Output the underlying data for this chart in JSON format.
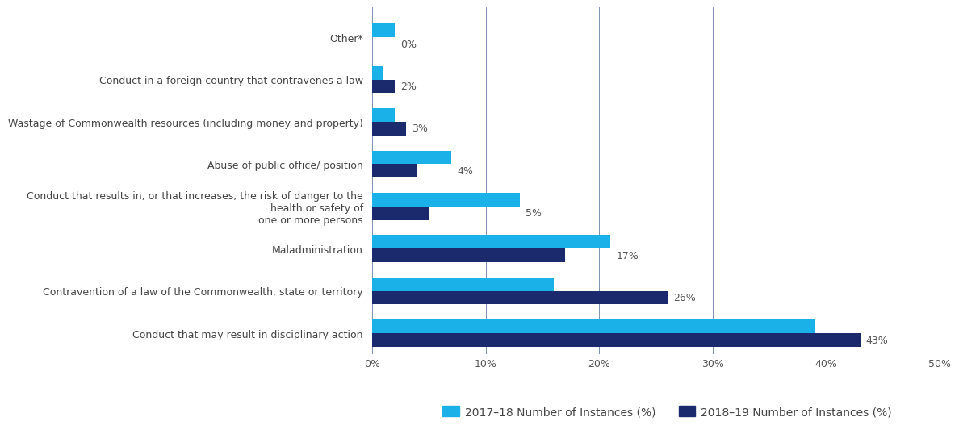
{
  "categories": [
    "Other*",
    "Conduct in a foreign country that contravenes a law",
    "Wastage of Commonwealth resources (including money and property)",
    "Abuse of public office/ position",
    "Conduct that results in, or that increases, the risk of danger to the health or safety of\none or more persons",
    "Maladministration",
    "Contravention of a law of the Commonwealth, state or territory",
    "Conduct that may result in disciplinary action"
  ],
  "values_2017_18": [
    2,
    1,
    2,
    7,
    13,
    21,
    16,
    39
  ],
  "values_2018_19": [
    0,
    2,
    3,
    4,
    5,
    17,
    26,
    43
  ],
  "labels_2018_19": [
    "0%",
    "2%",
    "3%",
    "4%",
    "5%",
    "17%",
    "26%",
    "43%"
  ],
  "color_2017_18": "#1ab0e8",
  "color_2018_19": "#1a2a6c",
  "legend_2017_18": "2017–18 Number of Instances (%)",
  "legend_2018_19": "2018–19 Number of Instances (%)",
  "xlim": [
    0,
    50
  ],
  "xticks": [
    0,
    10,
    20,
    30,
    40,
    50
  ],
  "xticklabels": [
    "0%",
    "10%",
    "20%",
    "30%",
    "40%",
    "50%"
  ],
  "background_color": "#ffffff",
  "bar_height": 0.32,
  "label_fontsize": 9,
  "tick_fontsize": 9,
  "legend_fontsize": 10,
  "category_fontsize": 9
}
